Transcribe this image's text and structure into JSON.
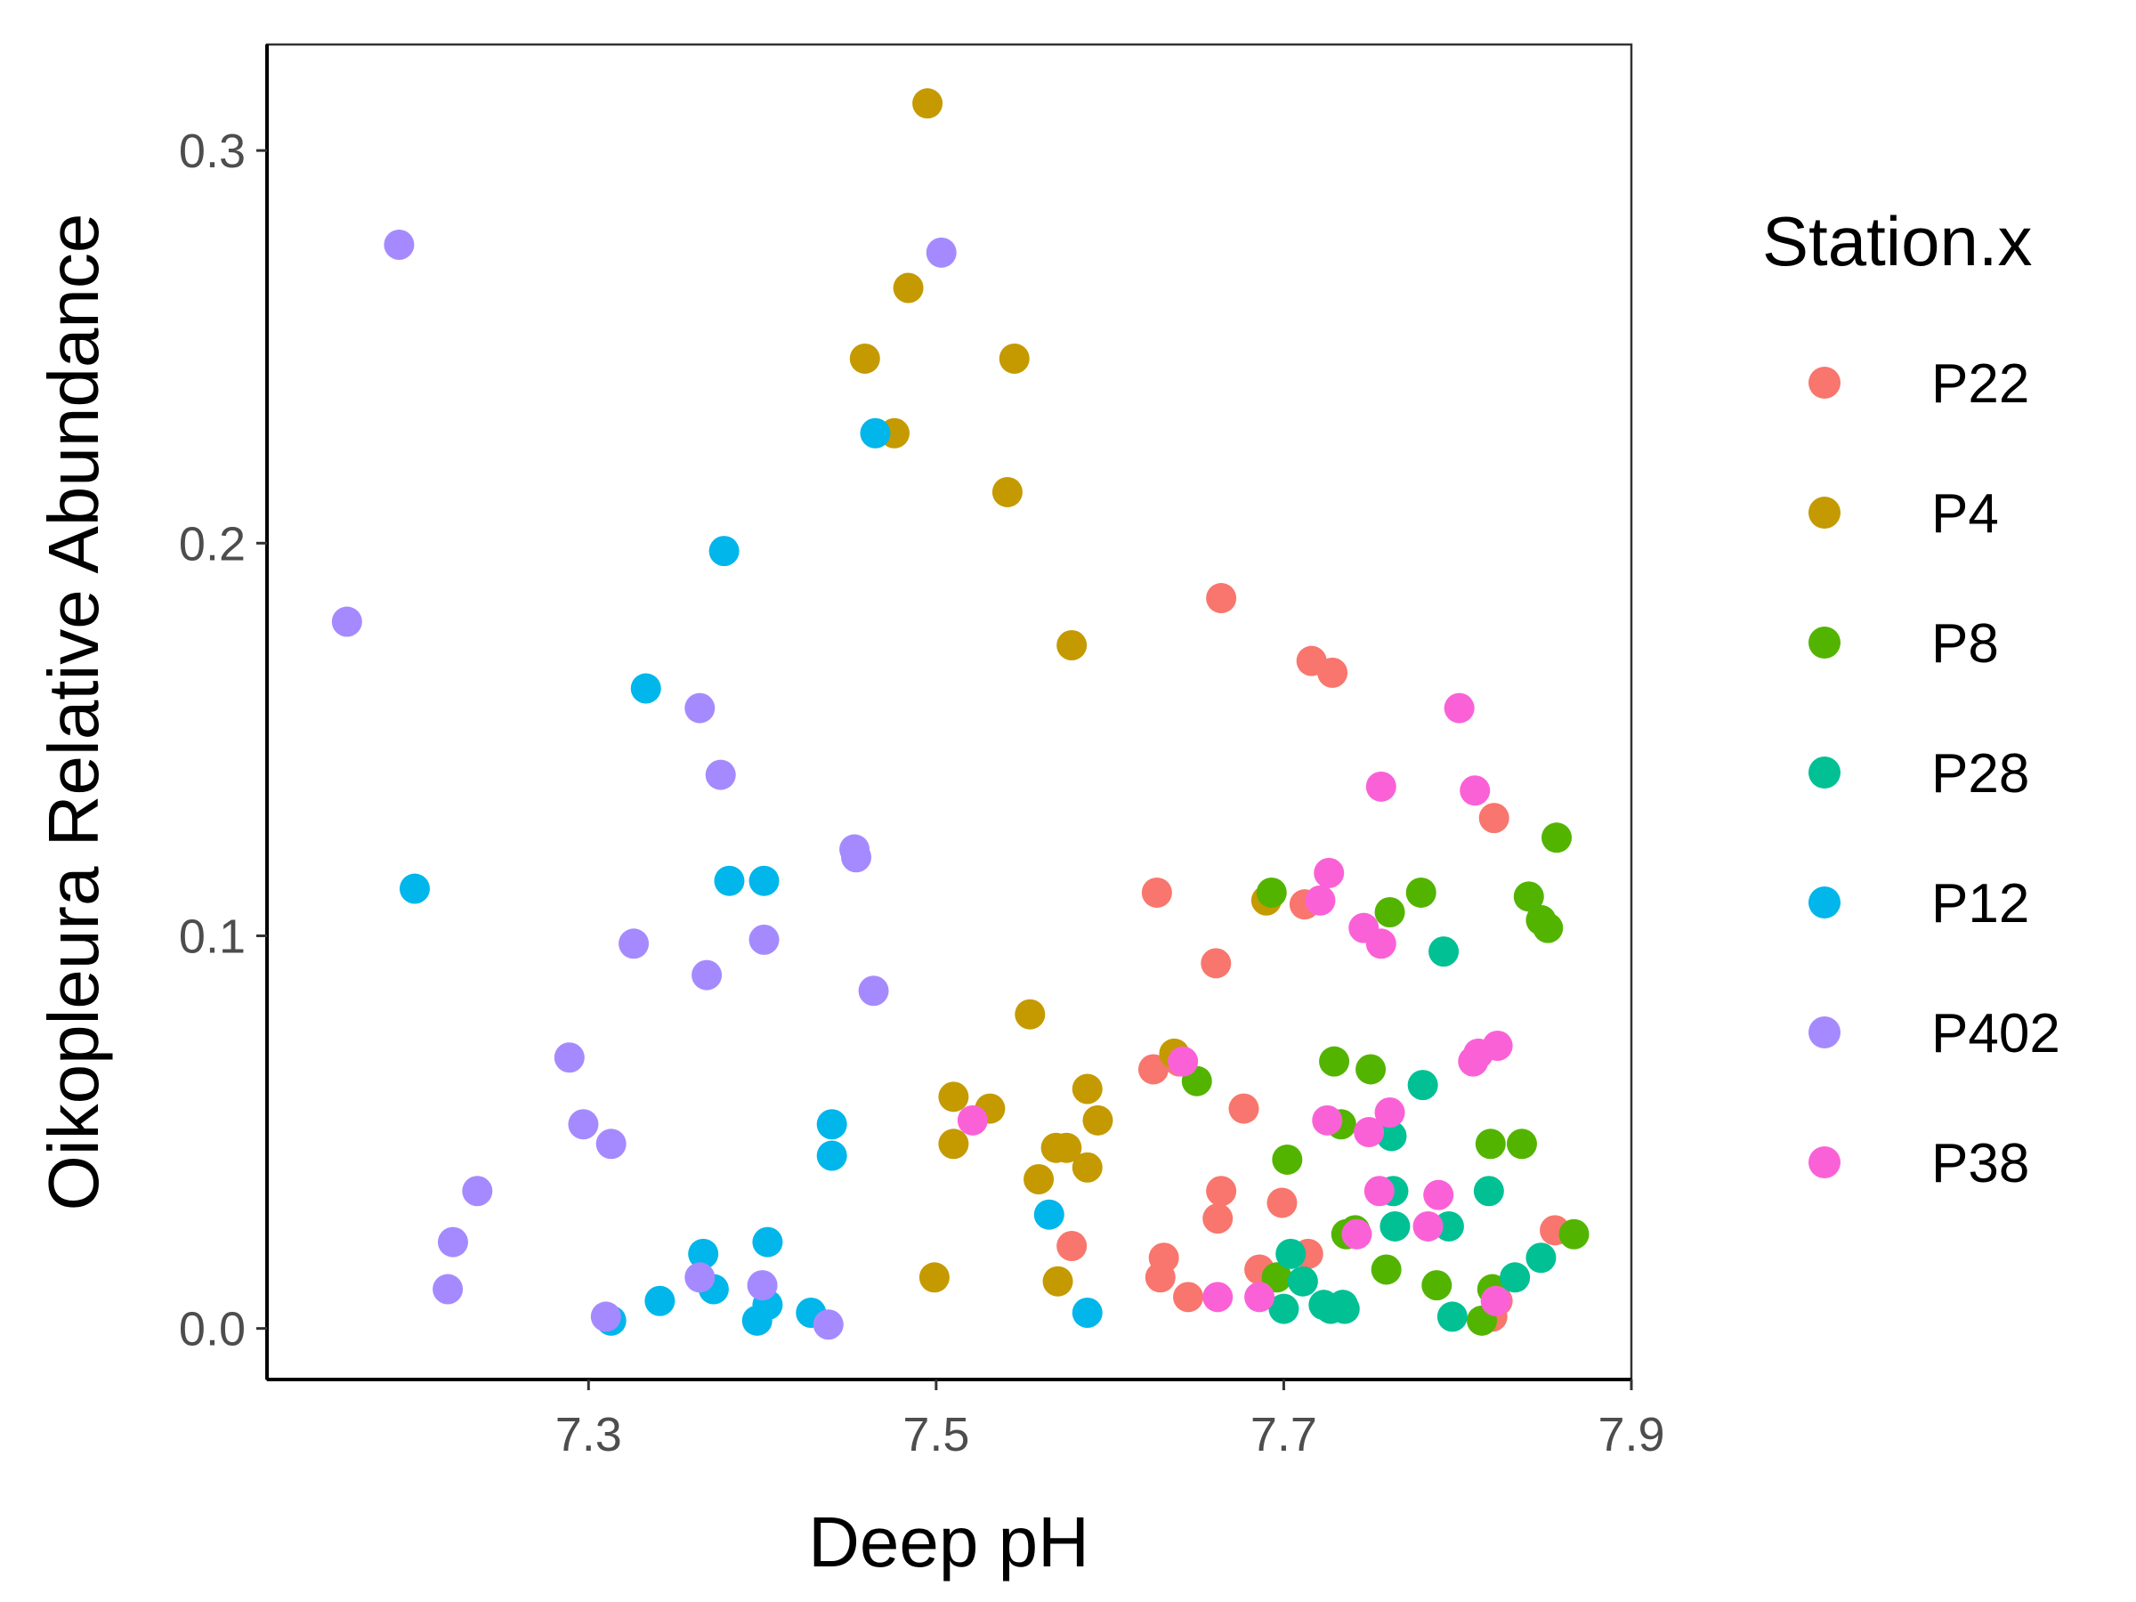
{
  "chart_data": {
    "type": "scatter",
    "title": "",
    "xlabel": "Deep pH",
    "ylabel": "Oikopleura Relative Abundance",
    "xlim": [
      7.115,
      7.9
    ],
    "ylim": [
      -0.013,
      0.327
    ],
    "x_ticks": [
      "7.3",
      "7.5",
      "7.7",
      "7.9"
    ],
    "y_ticks": [
      "0.0",
      "0.1",
      "0.2",
      "0.3"
    ],
    "grid": false,
    "legend": {
      "title": "Station.x",
      "position": "right"
    },
    "series": [
      {
        "name": "P22",
        "color": "#F8766D",
        "points": [
          [
            7.664,
            0.186
          ],
          [
            7.716,
            0.17
          ],
          [
            7.728,
            0.167
          ],
          [
            7.821,
            0.13
          ],
          [
            7.627,
            0.111
          ],
          [
            7.712,
            0.108
          ],
          [
            7.661,
            0.093
          ],
          [
            7.625,
            0.066
          ],
          [
            7.64,
            0.068
          ],
          [
            7.677,
            0.056
          ],
          [
            7.664,
            0.035
          ],
          [
            7.662,
            0.028
          ],
          [
            7.699,
            0.032
          ],
          [
            7.578,
            0.021
          ],
          [
            7.631,
            0.018
          ],
          [
            7.714,
            0.019
          ],
          [
            7.629,
            0.013
          ],
          [
            7.686,
            0.015
          ],
          [
            7.645,
            0.008
          ],
          [
            7.856,
            0.025
          ],
          [
            7.823,
            0.007
          ],
          [
            7.82,
            0.003
          ]
        ]
      },
      {
        "name": "P4",
        "color": "#C49A00",
        "points": [
          [
            7.495,
            0.312
          ],
          [
            7.484,
            0.265
          ],
          [
            7.459,
            0.247
          ],
          [
            7.545,
            0.247
          ],
          [
            7.476,
            0.228
          ],
          [
            7.541,
            0.213
          ],
          [
            7.578,
            0.174
          ],
          [
            7.69,
            0.109
          ],
          [
            7.554,
            0.08
          ],
          [
            7.637,
            0.07
          ],
          [
            7.51,
            0.059
          ],
          [
            7.531,
            0.056
          ],
          [
            7.587,
            0.061
          ],
          [
            7.593,
            0.053
          ],
          [
            7.51,
            0.047
          ],
          [
            7.569,
            0.046
          ],
          [
            7.575,
            0.046
          ],
          [
            7.559,
            0.038
          ],
          [
            7.587,
            0.041
          ],
          [
            7.499,
            0.013
          ],
          [
            7.57,
            0.012
          ]
        ]
      },
      {
        "name": "P8",
        "color": "#53B400",
        "points": [
          [
            7.857,
            0.125
          ],
          [
            7.693,
            0.111
          ],
          [
            7.779,
            0.111
          ],
          [
            7.841,
            0.11
          ],
          [
            7.761,
            0.106
          ],
          [
            7.848,
            0.104
          ],
          [
            7.852,
            0.102
          ],
          [
            7.65,
            0.063
          ],
          [
            7.729,
            0.068
          ],
          [
            7.75,
            0.066
          ],
          [
            7.733,
            0.052
          ],
          [
            7.702,
            0.043
          ],
          [
            7.819,
            0.047
          ],
          [
            7.837,
            0.047
          ],
          [
            7.736,
            0.024
          ],
          [
            7.741,
            0.025
          ],
          [
            7.867,
            0.024
          ],
          [
            7.759,
            0.015
          ],
          [
            7.696,
            0.013
          ],
          [
            7.788,
            0.011
          ],
          [
            7.82,
            0.01
          ],
          [
            7.814,
            0.002
          ]
        ]
      },
      {
        "name": "P28",
        "color": "#00C094",
        "points": [
          [
            7.792,
            0.096
          ],
          [
            7.78,
            0.062
          ],
          [
            7.762,
            0.049
          ],
          [
            7.763,
            0.035
          ],
          [
            7.818,
            0.035
          ],
          [
            7.764,
            0.026
          ],
          [
            7.795,
            0.026
          ],
          [
            7.704,
            0.019
          ],
          [
            7.848,
            0.018
          ],
          [
            7.833,
            0.013
          ],
          [
            7.711,
            0.012
          ],
          [
            7.723,
            0.006
          ],
          [
            7.727,
            0.005
          ],
          [
            7.734,
            0.006
          ],
          [
            7.735,
            0.005
          ],
          [
            7.7,
            0.005
          ],
          [
            7.797,
            0.003
          ]
        ]
      },
      {
        "name": "P12",
        "color": "#00B6EB",
        "points": [
          [
            7.465,
            0.228
          ],
          [
            7.378,
            0.198
          ],
          [
            7.333,
            0.163
          ],
          [
            7.2,
            0.112
          ],
          [
            7.381,
            0.114
          ],
          [
            7.401,
            0.114
          ],
          [
            7.44,
            0.052
          ],
          [
            7.44,
            0.044
          ],
          [
            7.565,
            0.029
          ],
          [
            7.366,
            0.019
          ],
          [
            7.403,
            0.022
          ],
          [
            7.372,
            0.01
          ],
          [
            7.403,
            0.006
          ],
          [
            7.397,
            0.002
          ],
          [
            7.428,
            0.004
          ],
          [
            7.341,
            0.007
          ],
          [
            7.313,
            0.002
          ],
          [
            7.587,
            0.004
          ]
        ]
      },
      {
        "name": "P402",
        "color": "#A58AFF",
        "points": [
          [
            7.191,
            0.276
          ],
          [
            7.503,
            0.274
          ],
          [
            7.161,
            0.18
          ],
          [
            7.364,
            0.158
          ],
          [
            7.376,
            0.141
          ],
          [
            7.453,
            0.122
          ],
          [
            7.454,
            0.12
          ],
          [
            7.326,
            0.098
          ],
          [
            7.401,
            0.099
          ],
          [
            7.368,
            0.09
          ],
          [
            7.464,
            0.086
          ],
          [
            7.289,
            0.069
          ],
          [
            7.297,
            0.052
          ],
          [
            7.313,
            0.047
          ],
          [
            7.236,
            0.035
          ],
          [
            7.222,
            0.022
          ],
          [
            7.219,
            0.01
          ],
          [
            7.364,
            0.013
          ],
          [
            7.4,
            0.011
          ],
          [
            7.31,
            0.003
          ],
          [
            7.438,
            0.001
          ]
        ]
      },
      {
        "name": "P38",
        "color": "#FB61D7",
        "points": [
          [
            7.801,
            0.158
          ],
          [
            7.756,
            0.138
          ],
          [
            7.81,
            0.137
          ],
          [
            7.726,
            0.116
          ],
          [
            7.721,
            0.109
          ],
          [
            7.746,
            0.102
          ],
          [
            7.756,
            0.098
          ],
          [
            7.823,
            0.072
          ],
          [
            7.812,
            0.07
          ],
          [
            7.809,
            0.068
          ],
          [
            7.642,
            0.068
          ],
          [
            7.521,
            0.053
          ],
          [
            7.725,
            0.053
          ],
          [
            7.761,
            0.055
          ],
          [
            7.749,
            0.05
          ],
          [
            7.755,
            0.035
          ],
          [
            7.789,
            0.034
          ],
          [
            7.742,
            0.024
          ],
          [
            7.783,
            0.026
          ],
          [
            7.662,
            0.008
          ],
          [
            7.686,
            0.008
          ],
          [
            7.822,
            0.007
          ]
        ]
      }
    ]
  }
}
